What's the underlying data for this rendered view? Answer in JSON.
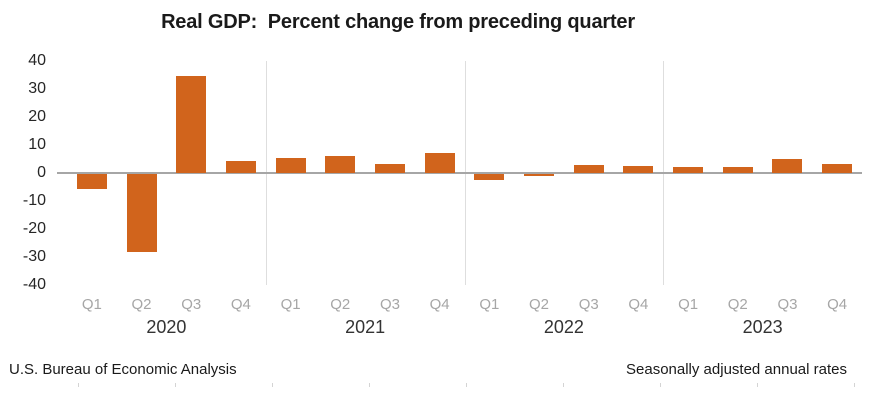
{
  "chart": {
    "title": "Real GDP:  Percent change from preceding quarter",
    "source_note": "U.S. Bureau of Economic Analysis",
    "rate_note": "Seasonally adjusted annual rates"
  },
  "colors": {
    "bar": "#d1641c",
    "zero_line": "#a6a6a6",
    "year_separator": "#dedede",
    "quarter_label": "#a6a6a6",
    "year_label": "#333333",
    "axis_label": "#262626"
  },
  "chart_data": {
    "type": "bar",
    "title": "Real GDP:  Percent change from preceding quarter",
    "xlabel": "",
    "ylabel": "Percent change from preceding quarter",
    "ylim": [
      -40,
      40
    ],
    "y_ticks": [
      40,
      30,
      20,
      10,
      0,
      -10,
      -20,
      -30,
      -40
    ],
    "grid": "vertical light separators between years only",
    "legend_position": "none",
    "bar_color": "#d1641c",
    "groups": [
      {
        "year": "2020",
        "quarters": [
          "Q1",
          "Q2",
          "Q3",
          "Q4"
        ],
        "values": [
          -5.3,
          -28.0,
          34.8,
          4.2
        ]
      },
      {
        "year": "2021",
        "quarters": [
          "Q1",
          "Q2",
          "Q3",
          "Q4"
        ],
        "values": [
          5.2,
          6.2,
          3.3,
          7.0
        ]
      },
      {
        "year": "2022",
        "quarters": [
          "Q1",
          "Q2",
          "Q3",
          "Q4"
        ],
        "values": [
          -2.0,
          -0.6,
          2.7,
          2.6
        ]
      },
      {
        "year": "2023",
        "quarters": [
          "Q1",
          "Q2",
          "Q3",
          "Q4"
        ],
        "values": [
          2.2,
          2.1,
          4.9,
          3.3
        ]
      }
    ]
  }
}
